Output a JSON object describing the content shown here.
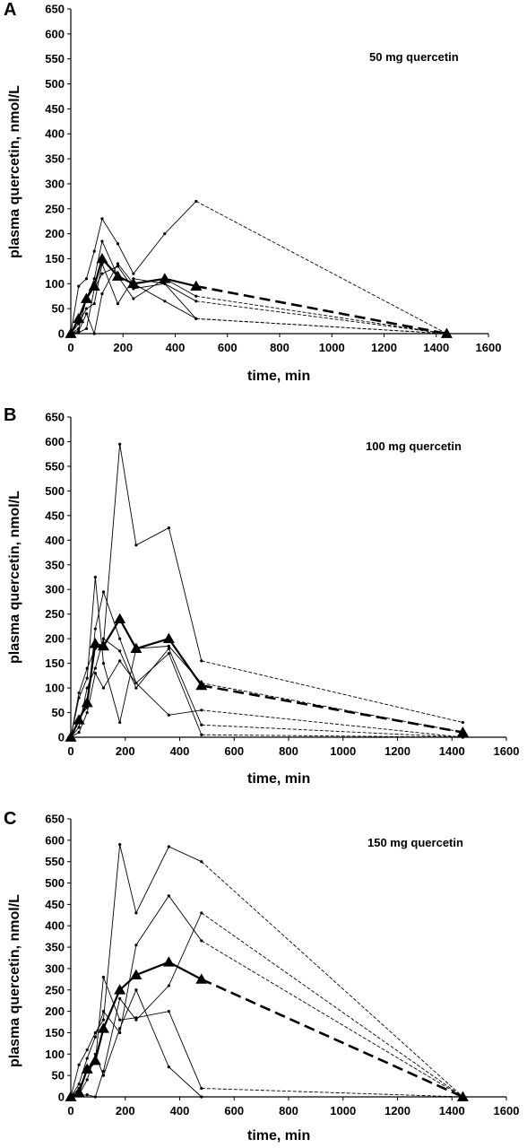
{
  "chart_data": [
    {
      "panel": "A",
      "type": "line",
      "title": "50 mg quercetin",
      "xlabel": "time, min",
      "ylabel": "plasma quercetin, nmol/L",
      "xlim": [
        0,
        1600
      ],
      "ylim": [
        0,
        650
      ],
      "xticks": [
        0,
        200,
        400,
        600,
        800,
        1000,
        1200,
        1400,
        1600
      ],
      "yticks": [
        0,
        50,
        100,
        150,
        200,
        250,
        300,
        350,
        400,
        450,
        500,
        550,
        600,
        650
      ],
      "grid": false,
      "mean": {
        "x": [
          0,
          30,
          60,
          90,
          120,
          180,
          240,
          360,
          480,
          1440
        ],
        "y": [
          0,
          30,
          70,
          95,
          150,
          115,
          100,
          110,
          95,
          0
        ]
      },
      "individuals": [
        {
          "x": [
            0,
            30,
            60,
            90,
            120,
            180,
            240,
            360,
            480,
            1440
          ],
          "y": [
            0,
            95,
            110,
            165,
            230,
            180,
            120,
            200,
            265,
            0
          ]
        },
        {
          "x": [
            0,
            30,
            60,
            90,
            120,
            180,
            240,
            360,
            480,
            1440
          ],
          "y": [
            0,
            10,
            70,
            110,
            185,
            115,
            70,
            110,
            75,
            0
          ]
        },
        {
          "x": [
            0,
            30,
            60,
            90,
            120,
            180,
            240,
            360,
            480,
            1440
          ],
          "y": [
            0,
            20,
            50,
            60,
            140,
            60,
            110,
            100,
            65,
            0
          ]
        },
        {
          "x": [
            0,
            30,
            60,
            90,
            120,
            180,
            240,
            360,
            480,
            1440
          ],
          "y": [
            0,
            5,
            40,
            0,
            80,
            140,
            100,
            65,
            30,
            0
          ]
        },
        {
          "x": [
            0,
            30,
            60,
            90,
            120,
            180,
            240,
            360,
            480,
            1440
          ],
          "y": [
            0,
            2,
            10,
            90,
            120,
            135,
            90,
            100,
            30,
            0
          ]
        }
      ]
    },
    {
      "panel": "B",
      "type": "line",
      "title": "100 mg quercetin",
      "xlabel": "time, min",
      "ylabel": "plasma quercetin, nmol/L",
      "xlim": [
        0,
        1600
      ],
      "ylim": [
        0,
        650
      ],
      "xticks": [
        0,
        200,
        400,
        600,
        800,
        1000,
        1200,
        1400,
        1600
      ],
      "yticks": [
        0,
        50,
        100,
        150,
        200,
        250,
        300,
        350,
        400,
        450,
        500,
        550,
        600,
        650
      ],
      "grid": false,
      "mean": {
        "x": [
          0,
          30,
          60,
          90,
          120,
          180,
          240,
          360,
          480,
          1440
        ],
        "y": [
          0,
          35,
          70,
          190,
          185,
          240,
          180,
          200,
          105,
          10
        ]
      },
      "individuals": [
        {
          "x": [
            0,
            30,
            60,
            90,
            120,
            180,
            240,
            360,
            480,
            1440
          ],
          "y": [
            0,
            90,
            140,
            180,
            190,
            595,
            390,
            425,
            155,
            30
          ]
        },
        {
          "x": [
            0,
            30,
            60,
            90,
            120,
            180,
            240,
            360,
            480,
            1440
          ],
          "y": [
            0,
            80,
            120,
            325,
            150,
            30,
            180,
            185,
            110,
            10
          ]
        },
        {
          "x": [
            0,
            30,
            60,
            90,
            120,
            180,
            240,
            360,
            480,
            1440
          ],
          "y": [
            0,
            40,
            60,
            220,
            295,
            200,
            110,
            45,
            55,
            0
          ]
        },
        {
          "x": [
            0,
            30,
            60,
            90,
            120,
            180,
            240,
            360,
            480,
            1440
          ],
          "y": [
            0,
            20,
            100,
            140,
            200,
            175,
            100,
            180,
            25,
            0
          ]
        },
        {
          "x": [
            0,
            30,
            60,
            90,
            120,
            180,
            240,
            360,
            480,
            1440
          ],
          "y": [
            0,
            10,
            50,
            130,
            100,
            155,
            110,
            170,
            5,
            0
          ]
        }
      ]
    },
    {
      "panel": "C",
      "type": "line",
      "title": "150 mg quercetin",
      "xlabel": "time, min",
      "ylabel": "plasma quercetin, nmol/L",
      "xlim": [
        0,
        1600
      ],
      "ylim": [
        0,
        650
      ],
      "xticks": [
        0,
        200,
        400,
        600,
        800,
        1000,
        1200,
        1400,
        1600
      ],
      "yticks": [
        0,
        50,
        100,
        150,
        200,
        250,
        300,
        350,
        400,
        450,
        500,
        550,
        600,
        650
      ],
      "grid": false,
      "mean": {
        "x": [
          0,
          30,
          60,
          90,
          120,
          180,
          240,
          360,
          480,
          1440
        ],
        "y": [
          0,
          10,
          65,
          85,
          160,
          250,
          285,
          315,
          275,
          0
        ]
      },
      "individuals": [
        {
          "x": [
            0,
            30,
            60,
            90,
            120,
            180,
            240,
            360,
            480,
            1440
          ],
          "y": [
            0,
            75,
            110,
            150,
            180,
            590,
            430,
            585,
            550,
            0
          ]
        },
        {
          "x": [
            0,
            30,
            60,
            90,
            120,
            180,
            240,
            360,
            480,
            1440
          ],
          "y": [
            0,
            30,
            90,
            140,
            200,
            150,
            355,
            470,
            365,
            0
          ]
        },
        {
          "x": [
            0,
            30,
            60,
            90,
            120,
            180,
            240,
            360,
            480,
            1440
          ],
          "y": [
            0,
            20,
            60,
            80,
            280,
            180,
            185,
            200,
            20,
            0
          ]
        },
        {
          "x": [
            0,
            30,
            60,
            90,
            120,
            180,
            240,
            360,
            480,
            1440
          ],
          "y": [
            0,
            5,
            40,
            100,
            50,
            160,
            250,
            70,
            0,
            0
          ]
        },
        {
          "x": [
            0,
            30,
            60,
            90,
            120,
            180,
            240,
            360,
            480,
            1440
          ],
          "y": [
            0,
            2,
            5,
            0,
            60,
            230,
            180,
            260,
            430,
            0
          ]
        }
      ]
    }
  ]
}
